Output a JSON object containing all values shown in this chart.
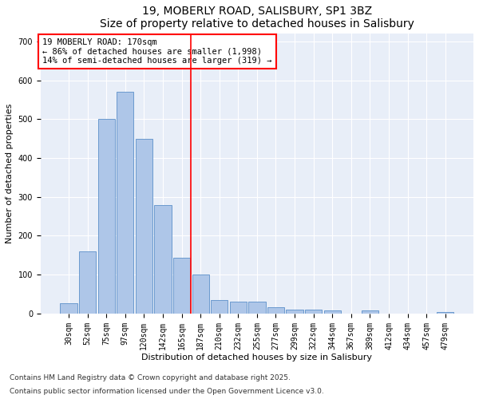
{
  "title": "19, MOBERLY ROAD, SALISBURY, SP1 3BZ",
  "subtitle": "Size of property relative to detached houses in Salisbury",
  "xlabel": "Distribution of detached houses by size in Salisbury",
  "ylabel": "Number of detached properties",
  "categories": [
    "30sqm",
    "52sqm",
    "75sqm",
    "97sqm",
    "120sqm",
    "142sqm",
    "165sqm",
    "187sqm",
    "210sqm",
    "232sqm",
    "255sqm",
    "277sqm",
    "299sqm",
    "322sqm",
    "344sqm",
    "367sqm",
    "389sqm",
    "412sqm",
    "434sqm",
    "457sqm",
    "479sqm"
  ],
  "values": [
    25,
    160,
    500,
    570,
    450,
    278,
    143,
    100,
    35,
    30,
    30,
    15,
    10,
    10,
    7,
    0,
    7,
    0,
    0,
    0,
    4
  ],
  "bar_color": "#aec6e8",
  "bar_edge_color": "#5b8fc9",
  "vline_color": "red",
  "vline_index": 6.5,
  "annotation_text": "19 MOBERLY ROAD: 170sqm\n← 86% of detached houses are smaller (1,998)\n14% of semi-detached houses are larger (319) →",
  "annotation_box_color": "white",
  "annotation_box_edge_color": "red",
  "ylim": [
    0,
    720
  ],
  "yticks": [
    0,
    100,
    200,
    300,
    400,
    500,
    600,
    700
  ],
  "background_color": "#e8eef8",
  "footer_line1": "Contains HM Land Registry data © Crown copyright and database right 2025.",
  "footer_line2": "Contains public sector information licensed under the Open Government Licence v3.0.",
  "title_fontsize": 10,
  "xlabel_fontsize": 8,
  "ylabel_fontsize": 8,
  "tick_fontsize": 7,
  "footer_fontsize": 6.5,
  "annot_fontsize": 7.5
}
